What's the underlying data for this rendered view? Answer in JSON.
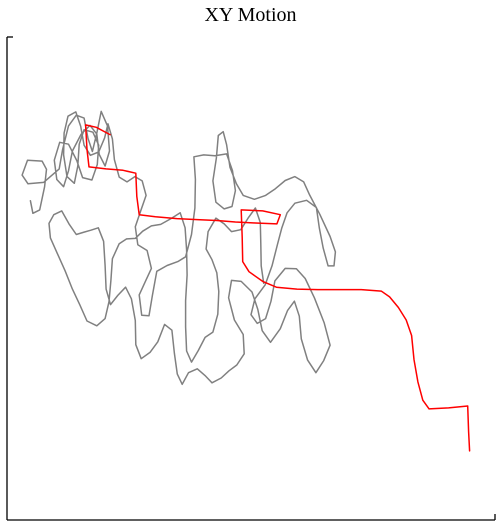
{
  "chart_data": {
    "type": "line",
    "title": "XY Motion",
    "xlabel": "",
    "ylabel": "",
    "xlim": [
      0,
      100
    ],
    "ylim": [
      0,
      100
    ],
    "grid": false,
    "legend": "none",
    "series": [
      {
        "color": "#808080",
        "points": [
          [
            4.8,
            66.1
          ],
          [
            5.3,
            63.5
          ],
          [
            6.7,
            64.2
          ],
          [
            7.7,
            69.0
          ],
          [
            8.1,
            72.6
          ],
          [
            7.2,
            74.3
          ],
          [
            4.2,
            74.5
          ],
          [
            3.1,
            71.4
          ],
          [
            4.3,
            69.6
          ],
          [
            7.5,
            69.9
          ],
          [
            10.7,
            72.7
          ],
          [
            11.4,
            76.7
          ],
          [
            12.6,
            81.6
          ],
          [
            14.2,
            83.8
          ],
          [
            15.8,
            83.2
          ],
          [
            16.6,
            79.0
          ],
          [
            17.5,
            76.3
          ],
          [
            18.4,
            80.1
          ],
          [
            19.3,
            84.6
          ],
          [
            20.6,
            81.6
          ],
          [
            21.0,
            76.4
          ],
          [
            20.1,
            73.3
          ],
          [
            18.9,
            75.7
          ],
          [
            18.4,
            79.9
          ],
          [
            17.0,
            81.7
          ],
          [
            15.2,
            79.9
          ],
          [
            13.4,
            76.4
          ],
          [
            12.6,
            72.3
          ],
          [
            11.6,
            69.0
          ],
          [
            10.2,
            70.5
          ],
          [
            9.7,
            74.5
          ],
          [
            10.8,
            78.2
          ],
          [
            12.6,
            77.8
          ],
          [
            14.3,
            74.4
          ],
          [
            15.5,
            70.9
          ],
          [
            17.4,
            70.4
          ],
          [
            18.5,
            73.6
          ],
          [
            18.8,
            77.6
          ],
          [
            17.6,
            80.3
          ],
          [
            15.8,
            80.8
          ],
          [
            14.8,
            77.8
          ],
          [
            14.5,
            73.3
          ],
          [
            13.8,
            69.7
          ],
          [
            12.3,
            71.1
          ],
          [
            11.6,
            75.6
          ],
          [
            11.7,
            80.1
          ],
          [
            12.5,
            83.6
          ],
          [
            14.1,
            84.5
          ],
          [
            15.1,
            81.5
          ],
          [
            15.8,
            77.6
          ],
          [
            17.1,
            75.5
          ],
          [
            18.8,
            76.2
          ],
          [
            20.0,
            79.1
          ],
          [
            20.7,
            82.0
          ],
          [
            21.6,
            78.9
          ],
          [
            22.0,
            74.6
          ],
          [
            23.0,
            71.0
          ],
          [
            24.6,
            70.0
          ],
          [
            26.2,
            71.1
          ],
          [
            27.7,
            70.2
          ],
          [
            28.5,
            67.2
          ],
          [
            27.4,
            64.0
          ],
          [
            26.3,
            60.7
          ],
          [
            26.8,
            57.0
          ],
          [
            28.7,
            55.8
          ],
          [
            29.6,
            52.1
          ],
          [
            28.4,
            49.5
          ],
          [
            27.1,
            46.6
          ],
          [
            27.6,
            42.4
          ],
          [
            29.1,
            42.3
          ],
          [
            29.8,
            46.5
          ],
          [
            30.7,
            51.5
          ],
          [
            32.8,
            52.7
          ],
          [
            35.0,
            53.5
          ],
          [
            36.6,
            54.5
          ],
          [
            37.8,
            59.1
          ],
          [
            38.5,
            64.6
          ],
          [
            38.6,
            70.5
          ],
          [
            38.3,
            75.2
          ],
          [
            40.3,
            75.6
          ],
          [
            42.6,
            75.4
          ],
          [
            45.0,
            75.8
          ],
          [
            46.2,
            72.3
          ],
          [
            46.8,
            68.2
          ],
          [
            46.1,
            64.9
          ],
          [
            44.5,
            64.4
          ],
          [
            42.8,
            65.8
          ],
          [
            42.2,
            70.2
          ],
          [
            42.9,
            75.0
          ],
          [
            43.3,
            79.6
          ],
          [
            44.3,
            80.4
          ],
          [
            45.0,
            77.7
          ],
          [
            45.7,
            73.0
          ],
          [
            47.0,
            69.6
          ],
          [
            48.4,
            67.2
          ],
          [
            50.7,
            66.4
          ],
          [
            53.0,
            67.2
          ],
          [
            55.0,
            68.6
          ],
          [
            57.0,
            70.3
          ],
          [
            59.0,
            71.1
          ],
          [
            60.8,
            70.0
          ],
          [
            62.0,
            67.3
          ],
          [
            64.1,
            63.3
          ],
          [
            66.2,
            58.7
          ],
          [
            67.3,
            55.5
          ],
          [
            67.0,
            52.6
          ],
          [
            65.8,
            52.6
          ],
          [
            64.8,
            56.3
          ],
          [
            64.0,
            60.5
          ],
          [
            63.4,
            64.7
          ],
          [
            61.4,
            66.2
          ],
          [
            59.0,
            65.6
          ],
          [
            57.4,
            63.6
          ],
          [
            56.3,
            60.4
          ],
          [
            55.4,
            57.0
          ],
          [
            54.3,
            52.6
          ],
          [
            52.9,
            48.7
          ],
          [
            50.8,
            45.8
          ],
          [
            50.0,
            42.5
          ],
          [
            51.3,
            40.7
          ],
          [
            53.0,
            41.7
          ],
          [
            54.1,
            45.3
          ],
          [
            54.9,
            49.5
          ],
          [
            57.0,
            52.1
          ],
          [
            59.3,
            52.0
          ],
          [
            61.1,
            50.0
          ],
          [
            63.0,
            46.0
          ],
          [
            65.0,
            40.8
          ],
          [
            66.2,
            36.2
          ],
          [
            64.9,
            33.0
          ],
          [
            63.3,
            30.5
          ],
          [
            61.6,
            33.1
          ],
          [
            60.3,
            37.5
          ],
          [
            59.9,
            42.2
          ],
          [
            58.9,
            45.3
          ],
          [
            57.5,
            43.4
          ],
          [
            56.0,
            39.6
          ],
          [
            54.0,
            36.8
          ],
          [
            52.3,
            39.2
          ],
          [
            51.4,
            43.6
          ],
          [
            50.2,
            47.2
          ],
          [
            48.0,
            49.4
          ],
          [
            46.0,
            49.6
          ],
          [
            45.4,
            46.0
          ],
          [
            46.6,
            41.4
          ],
          [
            48.4,
            38.4
          ],
          [
            48.6,
            34.4
          ],
          [
            47.1,
            32.1
          ],
          [
            45.5,
            30.9
          ],
          [
            43.9,
            29.4
          ],
          [
            42.0,
            28.4
          ],
          [
            40.7,
            29.8
          ],
          [
            39.0,
            31.3
          ],
          [
            37.2,
            30.5
          ],
          [
            35.9,
            28.1
          ],
          [
            34.9,
            30.2
          ],
          [
            34.3,
            34.5
          ],
          [
            33.8,
            39.3
          ],
          [
            32.3,
            40.5
          ],
          [
            30.9,
            36.9
          ],
          [
            29.3,
            34.7
          ],
          [
            27.5,
            33.4
          ],
          [
            26.4,
            36.3
          ],
          [
            26.3,
            41.3
          ],
          [
            25.5,
            45.8
          ],
          [
            24.3,
            48.2
          ],
          [
            22.7,
            46.5
          ],
          [
            21.2,
            44.6
          ],
          [
            20.3,
            47.8
          ],
          [
            20.1,
            52.7
          ],
          [
            19.8,
            57.7
          ],
          [
            18.7,
            60.5
          ],
          [
            17.2,
            60.0
          ],
          [
            15.8,
            59.6
          ],
          [
            14.2,
            59.1
          ],
          [
            12.7,
            61.3
          ],
          [
            11.2,
            64.0
          ],
          [
            9.6,
            63.2
          ],
          [
            8.6,
            61.4
          ],
          [
            8.9,
            58.4
          ],
          [
            10.3,
            55.2
          ],
          [
            11.9,
            51.6
          ],
          [
            13.4,
            47.8
          ],
          [
            14.9,
            44.6
          ],
          [
            16.4,
            41.2
          ],
          [
            18.4,
            40.2
          ],
          [
            20.1,
            41.7
          ],
          [
            20.9,
            45.2
          ],
          [
            21.3,
            49.6
          ],
          [
            21.6,
            54.1
          ],
          [
            23.0,
            57.2
          ],
          [
            24.5,
            58.2
          ],
          [
            26.3,
            58.3
          ],
          [
            27.8,
            59.8
          ],
          [
            29.6,
            60.9
          ],
          [
            31.5,
            61.2
          ],
          [
            33.6,
            62.4
          ],
          [
            35.5,
            63.6
          ],
          [
            36.5,
            60.5
          ],
          [
            36.8,
            55.9
          ],
          [
            36.9,
            50.7
          ],
          [
            36.6,
            45.4
          ],
          [
            36.6,
            40.0
          ],
          [
            36.8,
            35.0
          ],
          [
            37.8,
            32.7
          ],
          [
            39.2,
            35.1
          ],
          [
            40.6,
            37.8
          ],
          [
            42.2,
            38.9
          ],
          [
            43.2,
            42.6
          ],
          [
            43.4,
            47.3
          ],
          [
            43.0,
            51.2
          ],
          [
            42.0,
            53.9
          ],
          [
            40.8,
            56.1
          ],
          [
            41.2,
            59.7
          ],
          [
            42.8,
            62.5
          ],
          [
            44.5,
            61.3
          ],
          [
            46.0,
            59.7
          ],
          [
            47.9,
            60.1
          ],
          [
            49.4,
            62.5
          ],
          [
            50.9,
            64.6
          ],
          [
            51.9,
            61.6
          ],
          [
            52.0,
            57.2
          ],
          [
            52.1,
            52.6
          ],
          [
            52.6,
            49.0
          ]
        ]
      },
      {
        "color": "#ff0000",
        "points": [
          [
            94.8,
            14.3
          ],
          [
            94.6,
            18.3
          ],
          [
            94.4,
            23.6
          ],
          [
            90.5,
            23.2
          ],
          [
            86.5,
            23.0
          ],
          [
            85.2,
            24.8
          ],
          [
            84.2,
            28.6
          ],
          [
            83.4,
            33.2
          ],
          [
            82.9,
            38.2
          ],
          [
            81.8,
            41.4
          ],
          [
            80.2,
            44.0
          ],
          [
            78.4,
            46.2
          ],
          [
            76.7,
            47.4
          ],
          [
            72.6,
            47.7
          ],
          [
            68.0,
            47.7
          ],
          [
            63.7,
            47.7
          ],
          [
            59.4,
            47.8
          ],
          [
            55.2,
            48.2
          ],
          [
            52.4,
            49.4
          ],
          [
            49.6,
            51.4
          ],
          [
            48.3,
            53.5
          ],
          [
            48.2,
            58.5
          ],
          [
            48.0,
            64.2
          ],
          [
            52.4,
            64.0
          ],
          [
            56.0,
            63.2
          ],
          [
            55.3,
            61.3
          ],
          [
            50.9,
            61.5
          ],
          [
            46.8,
            61.7
          ],
          [
            43.0,
            62.0
          ],
          [
            39.0,
            62.2
          ],
          [
            34.8,
            62.4
          ],
          [
            30.4,
            62.8
          ],
          [
            27.1,
            63.2
          ],
          [
            26.6,
            67.0
          ],
          [
            26.4,
            71.8
          ],
          [
            23.8,
            72.4
          ],
          [
            20.3,
            72.7
          ],
          [
            16.8,
            73.1
          ],
          [
            16.4,
            76.7
          ],
          [
            16.1,
            81.8
          ],
          [
            18.3,
            81.3
          ],
          [
            21.1,
            79.8
          ]
        ]
      }
    ]
  }
}
